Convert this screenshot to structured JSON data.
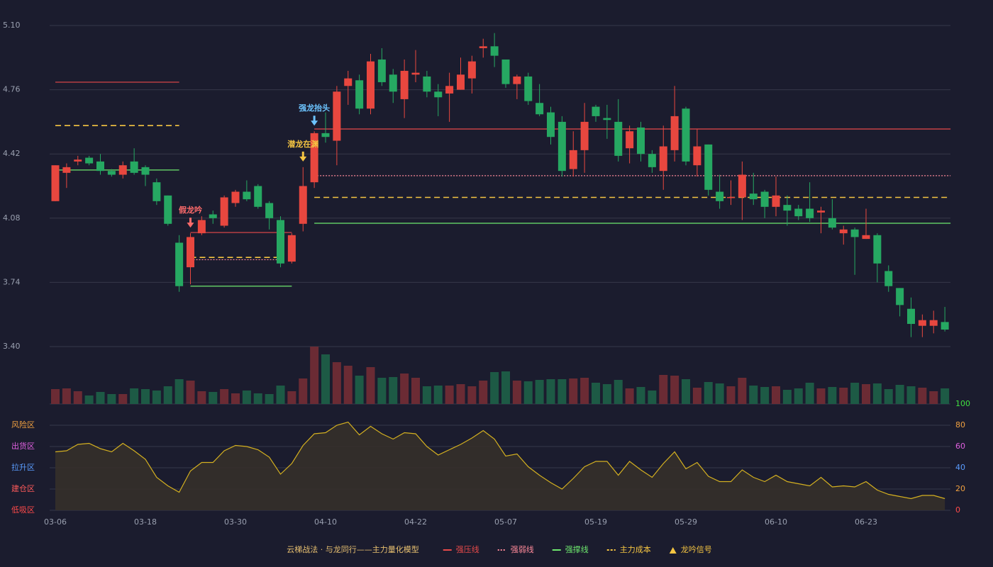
{
  "chart_data": {
    "type": "candlestick",
    "categories": [
      "03-06",
      null,
      null,
      null,
      null,
      null,
      null,
      null,
      "03-18",
      null,
      null,
      null,
      null,
      null,
      null,
      null,
      "03-30",
      null,
      null,
      null,
      null,
      null,
      null,
      null,
      "04-10",
      null,
      null,
      null,
      null,
      null,
      null,
      null,
      "04-22",
      null,
      null,
      null,
      null,
      null,
      null,
      null,
      "05-07",
      null,
      null,
      null,
      null,
      null,
      null,
      null,
      "05-19",
      null,
      null,
      null,
      null,
      null,
      null,
      null,
      "05-29",
      null,
      null,
      null,
      null,
      null,
      null,
      null,
      "06-10",
      null,
      null,
      null,
      null,
      null,
      null,
      null,
      "06-23",
      null,
      null,
      null,
      null,
      null,
      null,
      null
    ],
    "open": [
      4.17,
      4.32,
      4.38,
      4.4,
      4.38,
      4.33,
      4.31,
      4.38,
      4.35,
      4.27,
      4.2,
      3.95,
      3.82,
      4.0,
      4.1,
      4.04,
      4.16,
      4.22,
      4.25,
      4.16,
      4.07,
      3.85,
      4.05,
      4.27,
      4.53,
      4.49,
      4.78,
      4.81,
      4.66,
      4.92,
      4.84,
      4.71,
      4.84,
      4.83,
      4.75,
      4.74,
      4.76,
      4.82,
      4.98,
      4.99,
      4.92,
      4.79,
      4.83,
      4.69,
      4.64,
      4.59,
      4.34,
      4.44,
      4.67,
      4.61,
      4.59,
      4.45,
      4.56,
      4.42,
      4.33,
      4.44,
      4.66,
      4.36,
      4.47,
      4.22,
      4.188,
      4.19,
      4.21,
      4.22,
      4.14,
      4.15,
      4.13,
      4.13,
      4.11,
      4.08,
      4.0,
      4.02,
      3.97,
      3.99,
      3.8,
      3.71,
      3.6,
      3.51,
      3.51,
      3.53
    ],
    "high": [
      4.36,
      4.37,
      4.41,
      4.41,
      4.42,
      4.34,
      4.38,
      4.45,
      4.36,
      4.29,
      4.2,
      3.99,
      4.0,
      4.09,
      4.12,
      4.2,
      4.23,
      4.28,
      4.26,
      4.17,
      4.09,
      4.0,
      4.35,
      4.54,
      4.64,
      4.78,
      4.86,
      4.84,
      4.95,
      4.98,
      4.87,
      4.92,
      4.97,
      4.86,
      4.79,
      4.85,
      4.93,
      4.94,
      5.03,
      5.06,
      4.92,
      4.84,
      4.85,
      4.79,
      4.67,
      4.62,
      4.54,
      4.69,
      4.68,
      4.68,
      4.71,
      4.57,
      4.59,
      4.44,
      4.57,
      4.78,
      4.67,
      4.55,
      4.47,
      4.31,
      4.28,
      4.38,
      4.32,
      4.23,
      4.3,
      4.2,
      4.15,
      4.27,
      4.14,
      4.18,
      4.04,
      4.03,
      4.13,
      4.0,
      3.83,
      3.71,
      3.66,
      3.57,
      3.59,
      3.61
    ],
    "low": [
      4.17,
      4.24,
      4.36,
      4.36,
      4.31,
      4.3,
      4.29,
      4.31,
      4.25,
      4.15,
      4.04,
      3.69,
      3.73,
      3.99,
      4.05,
      4.03,
      4.14,
      4.17,
      4.13,
      4.02,
      3.82,
      3.84,
      4.01,
      4.24,
      4.48,
      4.36,
      4.68,
      4.63,
      4.63,
      4.78,
      4.69,
      4.61,
      4.8,
      4.72,
      4.62,
      4.59,
      4.76,
      4.74,
      4.93,
      4.88,
      4.77,
      4.71,
      4.68,
      4.62,
      4.47,
      4.3,
      4.3,
      4.32,
      4.59,
      4.5,
      4.38,
      4.37,
      4.38,
      4.32,
      4.23,
      4.38,
      4.36,
      4.3,
      4.2,
      4.13,
      4.15,
      4.07,
      4.15,
      4.08,
      4.09,
      4.04,
      4.07,
      4.06,
      4.0,
      4.02,
      3.94,
      3.78,
      3.97,
      3.74,
      3.69,
      3.56,
      3.45,
      3.45,
      3.47,
      3.48
    ],
    "close": [
      4.36,
      4.35,
      4.39,
      4.37,
      4.33,
      4.31,
      4.36,
      4.32,
      4.31,
      4.17,
      4.05,
      3.72,
      3.98,
      4.07,
      4.08,
      4.19,
      4.22,
      4.18,
      4.14,
      4.08,
      3.84,
      3.99,
      4.25,
      4.53,
      4.51,
      4.75,
      4.82,
      4.66,
      4.91,
      4.8,
      4.75,
      4.86,
      4.85,
      4.75,
      4.72,
      4.78,
      4.84,
      4.91,
      4.99,
      4.94,
      4.79,
      4.83,
      4.7,
      4.63,
      4.51,
      4.33,
      4.44,
      4.59,
      4.62,
      4.6,
      4.41,
      4.54,
      4.42,
      4.35,
      4.46,
      4.62,
      4.38,
      4.46,
      4.23,
      4.17,
      4.192,
      4.31,
      4.18,
      4.14,
      4.2,
      4.12,
      4.09,
      4.08,
      4.12,
      4.03,
      4.02,
      3.98,
      3.99,
      3.84,
      3.72,
      3.62,
      3.52,
      3.54,
      3.54,
      3.49
    ],
    "up_color": "#e8473f",
    "down_color": "#26a862",
    "ylim": [
      3.4,
      5.1
    ],
    "yticks": [
      {
        "value": 5.1,
        "label": "5.10"
      },
      4.76,
      4.42,
      4.08,
      3.74,
      {
        "value": 3.4,
        "label": "3.40"
      }
    ],
    "grid": true,
    "volume": [
      21,
      22,
      18,
      12,
      17,
      14,
      14,
      22,
      21,
      19,
      25,
      35,
      33,
      18,
      17,
      21,
      15,
      19,
      15,
      14,
      26,
      18,
      36,
      81,
      70,
      59,
      54,
      40,
      52,
      37,
      38,
      43,
      37,
      25,
      26,
      26,
      28,
      25,
      33,
      45,
      46,
      33,
      32,
      34,
      35,
      35,
      36,
      37,
      30,
      28,
      34,
      22,
      24,
      19,
      41,
      40,
      35,
      23,
      31,
      29,
      25,
      37,
      26,
      24,
      25,
      20,
      22,
      30,
      22,
      24,
      23,
      30,
      28,
      29,
      21,
      27,
      25,
      23,
      18,
      22
    ],
    "volume_up_color": "#6b2b34",
    "volume_down_color": "#1d5a45",
    "levels": [
      {
        "name": "强压线",
        "color": "#e84a4a",
        "dash": "solid",
        "segments": [
          {
            "start": 0,
            "end": 11,
            "value": 4.8
          },
          {
            "start": 12,
            "end": 21,
            "value": 4.004
          },
          {
            "start": 23,
            "end": 79,
            "value": 4.552
          }
        ]
      },
      {
        "name": "强弱线",
        "color": "#ff8a9a",
        "dash": "dotted",
        "segments": [
          {
            "start": 12,
            "end": 20,
            "value": 3.86
          },
          {
            "start": 23,
            "end": 79,
            "value": 4.305
          }
        ]
      },
      {
        "name": "强撑线",
        "color": "#6ee86e",
        "dash": "solid",
        "segments": [
          {
            "start": 0,
            "end": 11,
            "value": 4.335
          },
          {
            "start": 12,
            "end": 21,
            "value": 3.72
          },
          {
            "start": 23,
            "end": 79,
            "value": 4.053
          }
        ]
      },
      {
        "name": "主力成本",
        "color": "#f5c542",
        "dash": "dashed",
        "segments": [
          {
            "start": 0,
            "end": 11,
            "value": 4.57
          },
          {
            "start": 12,
            "end": 20,
            "value": 3.872
          },
          {
            "start": 23,
            "end": 79,
            "value": 4.19
          }
        ]
      }
    ],
    "signals": [
      {
        "index": 12,
        "label": "假龙吟",
        "color": "#ff6b6b"
      },
      {
        "index": 22,
        "label": "潜龙在渊",
        "color": "#f5c542"
      },
      {
        "index": 23,
        "label": "强龙抬头",
        "color": "#6cc4ff"
      }
    ],
    "signal_legend": {
      "name": "龙吟信号",
      "color": "#f5c542"
    },
    "legend_title": "云梯战法 · 与龙同行——主力量化模型",
    "indicator": {
      "values": [
        55,
        56,
        62,
        63,
        58,
        55,
        63,
        56,
        48,
        31,
        23,
        17,
        37,
        45,
        45,
        56,
        61,
        60,
        57,
        50,
        34,
        44,
        61,
        72,
        73,
        80,
        83,
        71,
        79,
        72,
        67,
        73,
        72,
        60,
        52,
        57,
        62,
        68,
        75,
        67,
        51,
        53,
        41,
        33,
        26,
        20,
        30,
        41,
        46,
        46,
        33,
        46,
        38,
        31,
        44,
        55,
        39,
        45,
        32,
        27,
        27,
        38,
        31,
        27,
        33,
        27,
        25,
        23,
        31,
        22,
        23,
        22,
        27,
        19,
        15,
        13,
        11,
        14,
        14,
        11
      ],
      "color": "#d4b020",
      "fill": "#35302a",
      "ylim": [
        0,
        100
      ],
      "yticks": [
        0,
        20,
        40,
        60,
        80,
        100
      ],
      "ytick_colors": [
        "#ff4a4a",
        "#f0a040",
        "#5a9cff",
        "#e060e0",
        "#f0a040",
        "#40e040"
      ],
      "zones": [
        {
          "label": "风险区",
          "value": 80,
          "color": "#f0a040"
        },
        {
          "label": "出货区",
          "value": 60,
          "color": "#e060e0"
        },
        {
          "label": "拉升区",
          "value": 40,
          "color": "#5a9cff"
        },
        {
          "label": "建仓区",
          "value": 20,
          "color": "#ff5a5a"
        },
        {
          "label": "低吸区",
          "value": 0,
          "color": "#ff4a4a"
        }
      ]
    }
  }
}
